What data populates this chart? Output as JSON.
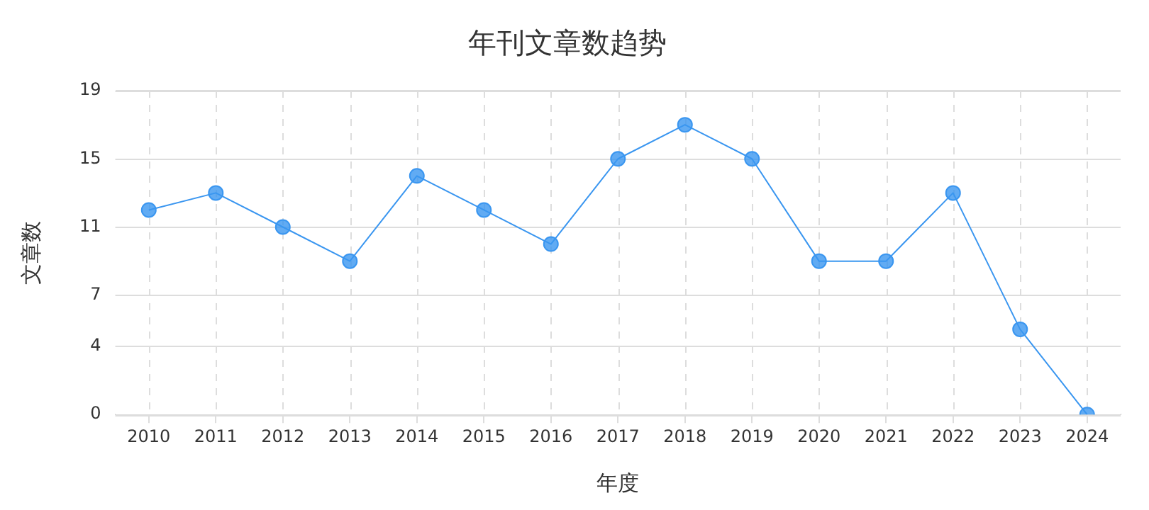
{
  "chart_data": {
    "type": "line",
    "title": "年刊文章数趋势",
    "xlabel": "年度",
    "ylabel": "文章数",
    "categories": [
      "2010",
      "2011",
      "2012",
      "2013",
      "2014",
      "2015",
      "2016",
      "2017",
      "2018",
      "2019",
      "2020",
      "2021",
      "2022",
      "2023",
      "2024"
    ],
    "series": [
      {
        "color": "#3a96f0",
        "values": [
          12,
          13,
          11,
          9,
          14,
          12,
          10,
          15,
          17,
          15,
          9,
          9,
          13,
          5,
          0
        ]
      }
    ],
    "ylim": [
      0,
      19
    ],
    "yticks": [
      0,
      4,
      7,
      11,
      15,
      19
    ],
    "grid": true,
    "legend": false,
    "marker": "circle",
    "line_style": "solid"
  }
}
